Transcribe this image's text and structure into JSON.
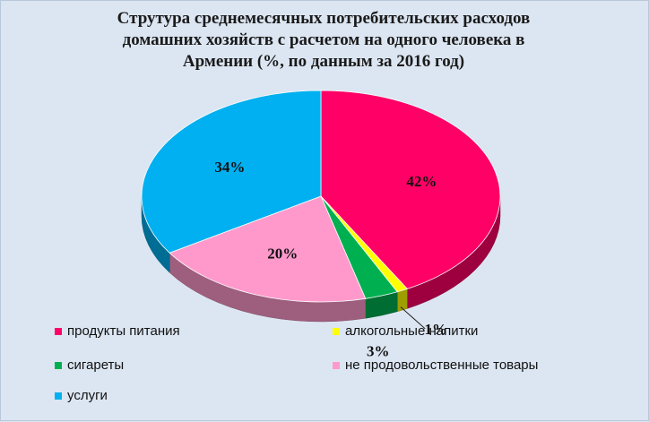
{
  "chart_data": {
    "type": "pie",
    "title_lines": [
      "Струтура среднемесячных  потребительских  расходов",
      "домашних хозяйств с расчетом на одного человека в",
      "Армении (%, по данным за 2016 год)"
    ],
    "slices": [
      {
        "label": "продукты питания",
        "value": 42,
        "display": "42%",
        "color": "#ff0066"
      },
      {
        "label": "алкогольные напитки",
        "value": 1,
        "display": "1%",
        "color": "#ffff00"
      },
      {
        "label": "сигареты",
        "value": 3,
        "display": "3%",
        "color": "#00b050"
      },
      {
        "label": "не продовольственные товары",
        "value": 20,
        "display": "20%",
        "color": "#ff99cc"
      },
      {
        "label": "услуги",
        "value": 34,
        "display": "34%",
        "color": "#00b0f0"
      }
    ],
    "legend_position": "bottom"
  }
}
